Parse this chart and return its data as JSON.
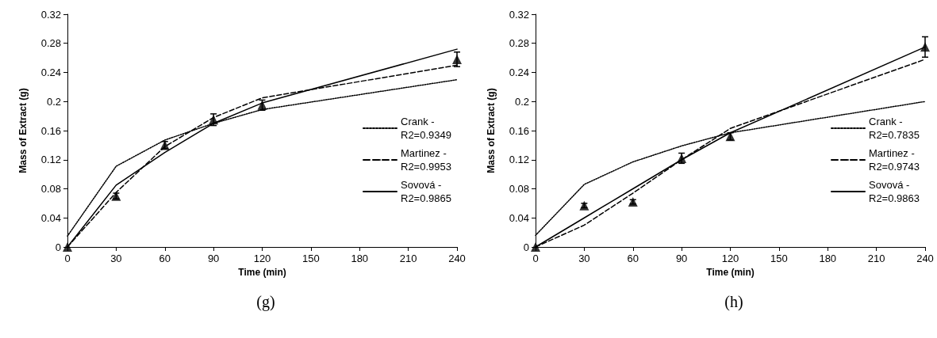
{
  "chart_data": [
    {
      "type": "line",
      "xlabel": "Time (min)",
      "ylabel": "Mass of Extract (g)",
      "annotations": [
        "(g)"
      ],
      "x": [
        0,
        30,
        60,
        90,
        120,
        240
      ],
      "xlim": [
        0,
        240
      ],
      "xticks": [
        0,
        30,
        60,
        90,
        120,
        150,
        180,
        210,
        240
      ],
      "ylim": [
        0,
        0.32
      ],
      "yticks": [
        0,
        0.04,
        0.08,
        0.12,
        0.16,
        0.2,
        0.24,
        0.28,
        0.32
      ],
      "grid": false,
      "legend": "right",
      "series": [
        {
          "type": "scatter",
          "color": "#000000",
          "marker": "triangle",
          "values": [
            0,
            0.07,
            0.14,
            0.175,
            0.195,
            0.258
          ],
          "errors": [
            null,
            0.004,
            0.005,
            0.008,
            0.007,
            0.01
          ]
        },
        {
          "name": "Crank - R2=0.9349",
          "color": "#000000",
          "line_style": "dotted",
          "marker": "none",
          "values": [
            0.015,
            0.111,
            0.147,
            0.17,
            0.189,
            0.23
          ]
        },
        {
          "name": "Martinez - R2=0.9953",
          "color": "#000000",
          "line_style": "dashed",
          "marker": "none",
          "values": [
            0,
            0.075,
            0.138,
            0.178,
            0.205,
            0.25
          ]
        },
        {
          "name": "Sovová - R2=0.9865",
          "color": "#000000",
          "line_style": "solid",
          "marker": "none",
          "values": [
            0,
            0.085,
            0.13,
            0.17,
            0.198,
            0.272
          ]
        }
      ]
    },
    {
      "type": "line",
      "xlabel": "Time (min)",
      "ylabel": "Mass of Extract (g)",
      "annotations": [
        "(h)"
      ],
      "x": [
        0,
        30,
        60,
        90,
        120,
        240
      ],
      "xlim": [
        0,
        240
      ],
      "xticks": [
        0,
        30,
        60,
        90,
        120,
        150,
        180,
        210,
        240
      ],
      "ylim": [
        0,
        0.32
      ],
      "yticks": [
        0,
        0.04,
        0.08,
        0.12,
        0.16,
        0.2,
        0.24,
        0.28,
        0.32
      ],
      "grid": false,
      "legend": "right",
      "series": [
        {
          "type": "scatter",
          "color": "#000000",
          "marker": "triangle",
          "values": [
            0,
            0.057,
            0.062,
            0.122,
            0.152,
            0.275
          ],
          "errors": [
            null,
            0.003,
            0.003,
            0.007,
            0.005,
            0.014
          ]
        },
        {
          "name": "Crank - R2=0.7835",
          "color": "#000000",
          "line_style": "dotted",
          "marker": "none",
          "values": [
            0.016,
            0.086,
            0.117,
            0.139,
            0.157,
            0.2
          ]
        },
        {
          "name": "Martinez - R2=0.9743",
          "color": "#000000",
          "line_style": "dashed",
          "marker": "none",
          "values": [
            0,
            0.03,
            0.074,
            0.12,
            0.163,
            0.258
          ]
        },
        {
          "name": "Sovová - R2=0.9863",
          "color": "#000000",
          "line_style": "solid",
          "marker": "none",
          "values": [
            0,
            0.04,
            0.08,
            0.12,
            0.157,
            0.275
          ]
        }
      ]
    }
  ]
}
